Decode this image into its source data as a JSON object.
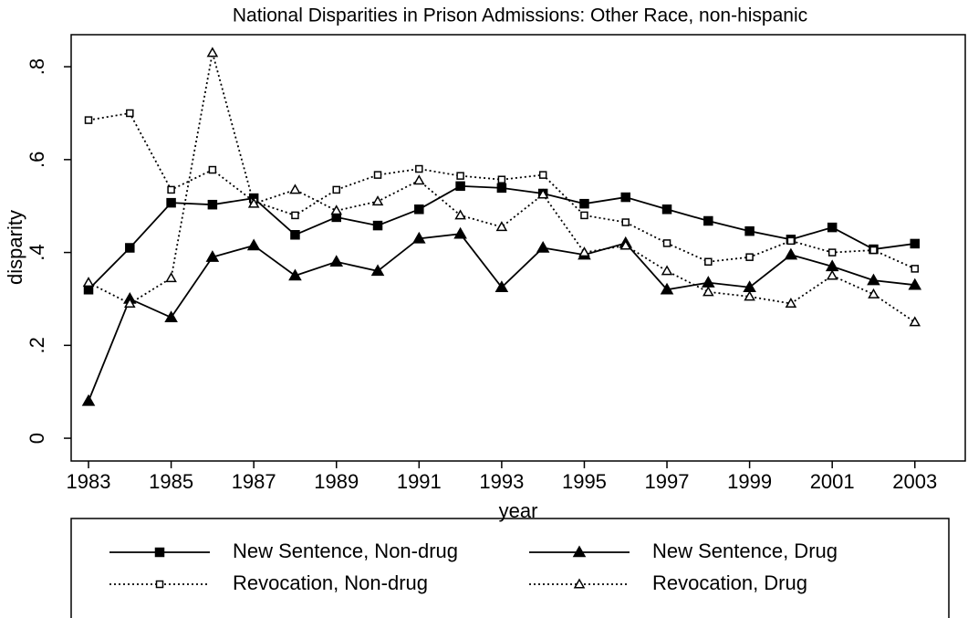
{
  "chart_data": {
    "type": "line",
    "title": "National Disparities in Prison Admissions: Other Race, non-hispanic",
    "xlabel": "year",
    "ylabel": "disparity",
    "x": [
      1983,
      1984,
      1985,
      1986,
      1987,
      1988,
      1989,
      1990,
      1991,
      1992,
      1993,
      1994,
      1995,
      1996,
      1997,
      1998,
      1999,
      2000,
      2001,
      2002,
      2003
    ],
    "series": [
      {
        "name": "New Sentence, Non-drug",
        "color": "#000000",
        "marker": "filled-square",
        "dash": "solid",
        "values": [
          0.32,
          0.41,
          0.507,
          0.503,
          0.517,
          0.438,
          0.476,
          0.458,
          0.493,
          0.543,
          0.539,
          0.527,
          0.505,
          0.519,
          0.493,
          0.468,
          0.446,
          0.428,
          0.454,
          0.407,
          0.419
        ]
      },
      {
        "name": "New Sentence, Drug",
        "color": "#000000",
        "marker": "filled-triangle",
        "dash": "solid",
        "values": [
          0.08,
          0.3,
          0.26,
          0.39,
          0.415,
          0.35,
          0.38,
          0.36,
          0.43,
          0.44,
          0.325,
          0.41,
          0.395,
          0.42,
          0.32,
          0.335,
          0.325,
          0.395,
          0.37,
          0.34,
          0.33
        ]
      },
      {
        "name": "Revocation, Non-drug",
        "color": "#000000",
        "marker": "open-square",
        "dash": "dotted",
        "values": [
          0.685,
          0.7,
          0.535,
          0.578,
          0.51,
          0.48,
          0.535,
          0.567,
          0.58,
          0.565,
          0.557,
          0.567,
          0.48,
          0.465,
          0.42,
          0.38,
          0.39,
          0.425,
          0.4,
          0.405,
          0.365
        ]
      },
      {
        "name": "Revocation, Drug",
        "color": "#000000",
        "marker": "open-triangle",
        "dash": "dotted",
        "values": [
          0.335,
          0.29,
          0.345,
          0.83,
          0.505,
          0.535,
          0.49,
          0.51,
          0.555,
          0.48,
          0.455,
          0.525,
          0.4,
          0.415,
          0.36,
          0.315,
          0.305,
          0.29,
          0.35,
          0.31,
          0.25
        ]
      }
    ],
    "xlim": [
      1982.58,
      2004.22
    ],
    "xticks": [
      1983,
      1985,
      1987,
      1989,
      1991,
      1993,
      1995,
      1997,
      1999,
      2001,
      2003
    ],
    "ylim": [
      -0.049,
      0.869
    ],
    "yticks": [
      0,
      {
        "value": 0.2,
        "label": ".2"
      },
      {
        "value": 0.4,
        "label": ".4"
      },
      {
        "value": 0.6,
        "label": ".6"
      },
      {
        "value": 0.8,
        "label": ".8"
      }
    ],
    "grid": false,
    "legend": "bottom"
  }
}
